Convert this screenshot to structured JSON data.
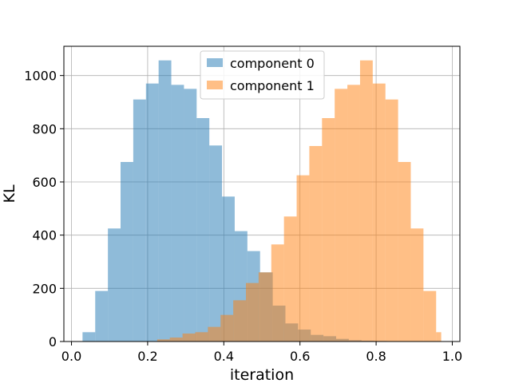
{
  "chart_data": {
    "type": "histogram",
    "title": "",
    "xlabel": "iteration",
    "ylabel": "KL",
    "xlim": [
      -0.02,
      1.02
    ],
    "ylim": [
      0,
      1110
    ],
    "xticks": [
      0.0,
      0.2,
      0.4,
      0.6,
      0.8,
      1.0
    ],
    "xtick_labels": [
      "0.0",
      "0.2",
      "0.4",
      "0.6",
      "0.8",
      "1.0"
    ],
    "yticks": [
      0,
      200,
      400,
      600,
      800,
      1000
    ],
    "ytick_labels": [
      "0",
      "200",
      "400",
      "600",
      "800",
      "1000"
    ],
    "grid": true,
    "legend_position": "top-center",
    "series": [
      {
        "name": "component 0",
        "color": "#1f77b4",
        "alpha": 0.5,
        "bin_edges": [
          0.029,
          0.0623,
          0.0956,
          0.1289,
          0.1622,
          0.1955,
          0.2288,
          0.2621,
          0.2954,
          0.3287,
          0.362,
          0.3953,
          0.4286,
          0.4619,
          0.4952,
          0.5285,
          0.5618,
          0.5951,
          0.6284,
          0.6617,
          0.695,
          0.7283,
          0.7616,
          0.7949,
          0.8282,
          0.8615,
          0.8948,
          0.9281
        ],
        "counts": [
          35,
          190,
          425,
          675,
          910,
          970,
          1057,
          965,
          950,
          840,
          737,
          545,
          415,
          340,
          260,
          135,
          68,
          45,
          25,
          20,
          10,
          5,
          3,
          2,
          1,
          1,
          0
        ]
      },
      {
        "name": "component 1",
        "color": "#ff7f0e",
        "alpha": 0.5,
        "bin_edges": [
          0.225,
          0.2583,
          0.2916,
          0.3249,
          0.3582,
          0.3915,
          0.4248,
          0.4581,
          0.4914,
          0.5247,
          0.558,
          0.5913,
          0.6246,
          0.6579,
          0.6912,
          0.7245,
          0.7578,
          0.7911,
          0.8244,
          0.8577,
          0.891,
          0.9243,
          0.9576,
          0.9709
        ],
        "counts": [
          8,
          15,
          30,
          35,
          55,
          100,
          155,
          220,
          260,
          365,
          470,
          625,
          735,
          840,
          950,
          965,
          1057,
          970,
          910,
          675,
          425,
          190,
          35
        ]
      }
    ]
  }
}
